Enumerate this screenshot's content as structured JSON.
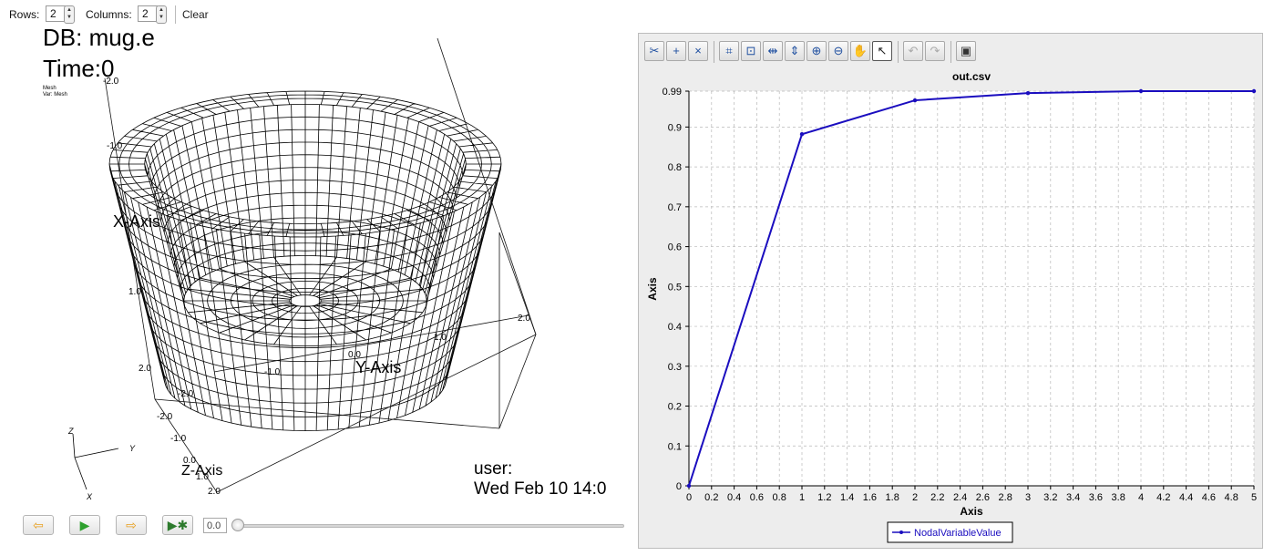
{
  "layout_bar": {
    "rows_label": "Rows:",
    "rows_value": "2",
    "columns_label": "Columns:",
    "columns_value": "2",
    "clear_label": "Clear"
  },
  "visit_window": {
    "db_text": "DB: mug.e",
    "time_text": "Time:0",
    "legend_line1": "Mesh",
    "legend_line2": "Var: Mesh",
    "user_text": "user:",
    "date_text": "Wed Feb 10 14:0",
    "axis_titles": {
      "x": "X-Axis",
      "y": "Y-Axis",
      "z": "Z-Axis"
    },
    "tick_labels": [
      "-2.0",
      "-1.0",
      "1.0",
      "2.0",
      "-2.0",
      "-1.0",
      "0.0",
      "1.0",
      "2.0",
      "-2.0",
      "-1.0",
      "0.0",
      "1.0",
      "2.0"
    ],
    "triad": {
      "x": "X",
      "y": "Y",
      "z": "Z"
    }
  },
  "animation_bar": {
    "time_value": "0.0",
    "icons": [
      "step-back-icon",
      "play-icon",
      "step-forward-icon",
      "animation-settings-icon"
    ]
  },
  "curve_window": {
    "toolbar_icons": [
      "cut-icon",
      "add-point-icon",
      "remove-point-icon",
      "reset-view-icon",
      "zoom-box-icon",
      "expand-horizontal-icon",
      "expand-vertical-icon",
      "zoom-in-icon",
      "zoom-out-icon",
      "pan-hand-icon",
      "pointer-icon",
      "undo-icon",
      "redo-icon",
      "print-icon"
    ],
    "accent_color": "#1a0dbf"
  },
  "chart_data": {
    "type": "line",
    "title": "out.csv",
    "xlabel": "Axis",
    "ylabel": "Axis",
    "xlim": [
      0,
      5
    ],
    "ylim": [
      0,
      0.99
    ],
    "x_ticks": [
      "0",
      "0.2",
      "0.4",
      "0.6",
      "0.8",
      "1",
      "1.2",
      "1.4",
      "1.6",
      "1.8",
      "2",
      "2.2",
      "2.4",
      "2.6",
      "2.8",
      "3",
      "3.2",
      "3.4",
      "3.6",
      "3.8",
      "4",
      "4.2",
      "4.4",
      "4.6",
      "4.8",
      "5"
    ],
    "y_ticks": [
      "0",
      "0.1",
      "0.2",
      "0.3",
      "0.4",
      "0.5",
      "0.6",
      "0.7",
      "0.8",
      "0.9",
      "0.99"
    ],
    "grid": true,
    "legend_position": "bottom-center",
    "series": [
      {
        "name": "NodalVariableValue",
        "color": "#1a0dbf",
        "x": [
          0,
          1,
          2,
          3,
          4,
          5
        ],
        "y": [
          0,
          0.882,
          0.967,
          0.985,
          0.99,
          0.99
        ]
      }
    ]
  }
}
